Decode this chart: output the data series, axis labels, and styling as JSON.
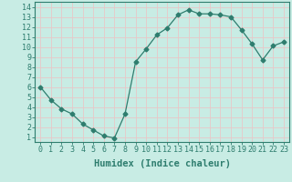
{
  "xlabel": "Humidex (Indice chaleur)",
  "ylabel": "",
  "x": [
    0,
    1,
    2,
    3,
    4,
    5,
    6,
    7,
    8,
    9,
    10,
    11,
    12,
    13,
    14,
    15,
    16,
    17,
    18,
    19,
    20,
    21,
    22,
    23
  ],
  "y": [
    6.0,
    4.7,
    3.8,
    3.3,
    2.3,
    1.7,
    1.1,
    0.9,
    3.3,
    8.5,
    9.8,
    11.2,
    11.9,
    13.2,
    13.7,
    13.3,
    13.3,
    13.2,
    13.0,
    11.7,
    10.3,
    8.7,
    10.1,
    10.5
  ],
  "line_color": "#2e7d6e",
  "marker": "D",
  "marker_size": 2.5,
  "bg_color": "#c8ece4",
  "grid_color": "#e8c8c8",
  "xlim": [
    -0.5,
    23.5
  ],
  "ylim": [
    0.5,
    14.5
  ],
  "yticks": [
    1,
    2,
    3,
    4,
    5,
    6,
    7,
    8,
    9,
    10,
    11,
    12,
    13,
    14
  ],
  "xticks": [
    0,
    1,
    2,
    3,
    4,
    5,
    6,
    7,
    8,
    9,
    10,
    11,
    12,
    13,
    14,
    15,
    16,
    17,
    18,
    19,
    20,
    21,
    22,
    23
  ],
  "tick_label_fontsize": 6,
  "xlabel_fontsize": 7.5
}
